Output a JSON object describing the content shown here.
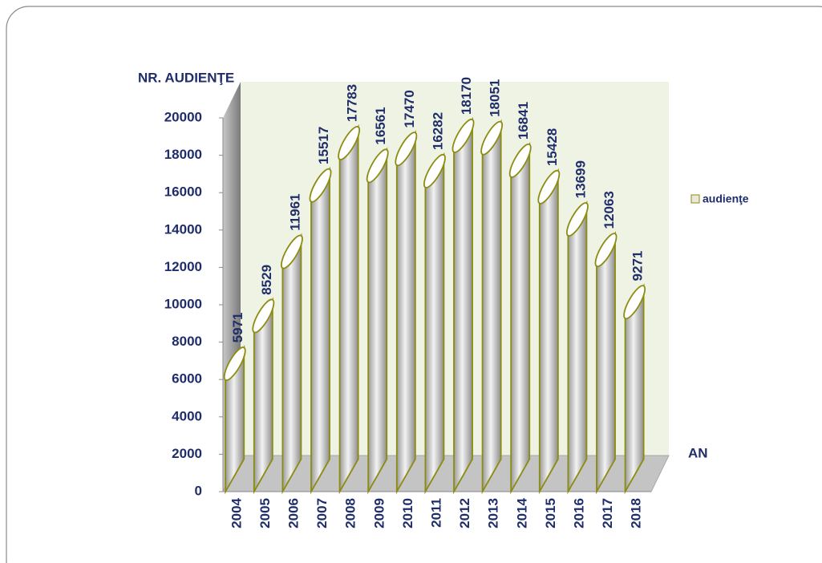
{
  "chart_data": {
    "type": "bar3d",
    "y_axis_label": "NR. AUDIENŢE",
    "x_axis_label": "AN",
    "categories": [
      "2004",
      "2005",
      "2006",
      "2007",
      "2008",
      "2009",
      "2010",
      "2011",
      "2012",
      "2013",
      "2014",
      "2015",
      "2016",
      "2017",
      "2018"
    ],
    "series": [
      {
        "name": "audienţe",
        "color": "#8c8c10",
        "values": [
          5971,
          8529,
          11961,
          15517,
          17783,
          16561,
          17470,
          16282,
          18170,
          18051,
          16841,
          15428,
          13699,
          12063,
          9271
        ]
      }
    ],
    "ylim": [
      0,
      20000
    ],
    "yticks": [
      0,
      2000,
      4000,
      6000,
      8000,
      10000,
      12000,
      14000,
      16000,
      18000,
      20000
    ],
    "grid": false,
    "legend": "right"
  }
}
